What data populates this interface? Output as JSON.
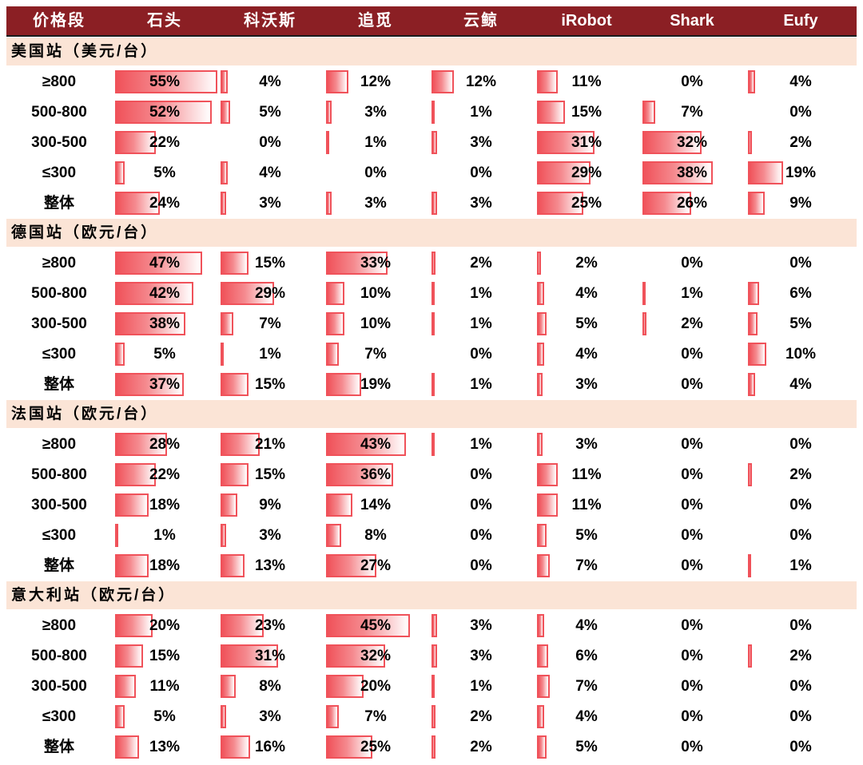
{
  "header": {
    "label": "价格段",
    "brands": [
      "石头",
      "科沃斯",
      "追觅",
      "云鲸",
      "iRobot",
      "Shark",
      "Eufy"
    ]
  },
  "chart_data": {
    "type": "table",
    "columns": [
      "价格段",
      "石头",
      "科沃斯",
      "追觅",
      "云鲸",
      "iRobot",
      "Shark",
      "Eufy"
    ],
    "sections": [
      {
        "title": "美国站（美元/台）",
        "rows": [
          {
            "label": "≥800",
            "values": [
              55,
              4,
              12,
              12,
              11,
              0,
              4
            ]
          },
          {
            "label": "500-800",
            "values": [
              52,
              5,
              3,
              1,
              15,
              7,
              0
            ]
          },
          {
            "label": "300-500",
            "values": [
              22,
              0,
              1,
              3,
              31,
              32,
              2
            ]
          },
          {
            "label": "≤300",
            "values": [
              5,
              4,
              0,
              0,
              29,
              38,
              19
            ]
          },
          {
            "label": "整体",
            "values": [
              24,
              3,
              3,
              3,
              25,
              26,
              9
            ]
          }
        ]
      },
      {
        "title": "德国站（欧元/台）",
        "rows": [
          {
            "label": "≥800",
            "values": [
              47,
              15,
              33,
              2,
              2,
              0,
              0
            ]
          },
          {
            "label": "500-800",
            "values": [
              42,
              29,
              10,
              1,
              4,
              1,
              6
            ]
          },
          {
            "label": "300-500",
            "values": [
              38,
              7,
              10,
              1,
              5,
              2,
              5
            ]
          },
          {
            "label": "≤300",
            "values": [
              5,
              1,
              7,
              0,
              4,
              0,
              10
            ]
          },
          {
            "label": "整体",
            "values": [
              37,
              15,
              19,
              1,
              3,
              0,
              4
            ]
          }
        ]
      },
      {
        "title": "法国站（欧元/台）",
        "rows": [
          {
            "label": "≥800",
            "values": [
              28,
              21,
              43,
              1,
              3,
              0,
              0
            ]
          },
          {
            "label": "500-800",
            "values": [
              22,
              15,
              36,
              0,
              11,
              0,
              2
            ]
          },
          {
            "label": "300-500",
            "values": [
              18,
              9,
              14,
              0,
              11,
              0,
              0
            ]
          },
          {
            "label": "≤300",
            "values": [
              1,
              3,
              8,
              0,
              5,
              0,
              0
            ]
          },
          {
            "label": "整体",
            "values": [
              18,
              13,
              27,
              0,
              7,
              0,
              1
            ]
          }
        ]
      },
      {
        "title": "意大利站（欧元/台）",
        "rows": [
          {
            "label": "≥800",
            "values": [
              20,
              23,
              45,
              3,
              4,
              0,
              0
            ]
          },
          {
            "label": "500-800",
            "values": [
              15,
              31,
              32,
              3,
              6,
              0,
              2
            ]
          },
          {
            "label": "300-500",
            "values": [
              11,
              8,
              20,
              1,
              7,
              0,
              0
            ]
          },
          {
            "label": "≤300",
            "values": [
              5,
              3,
              7,
              2,
              4,
              0,
              0
            ]
          },
          {
            "label": "整体",
            "values": [
              13,
              16,
              25,
              2,
              5,
              0,
              0
            ]
          }
        ]
      }
    ],
    "value_suffix": "%",
    "bar_color": "#f0525a",
    "header_color": "#8b1f24",
    "section_color": "#fbe4d6"
  }
}
